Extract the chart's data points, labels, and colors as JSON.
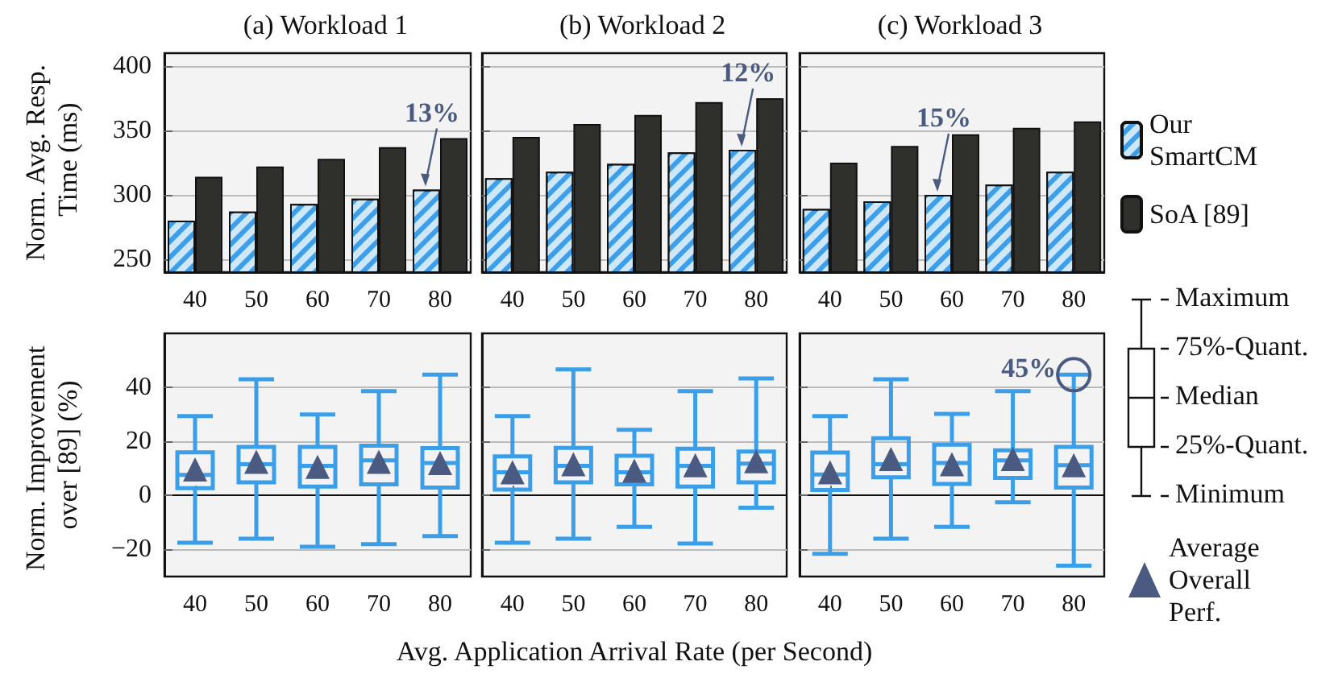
{
  "chart_data": [
    {
      "type": "bar",
      "title": "(a) Workload 1",
      "ylabel": "Norm. Avg. Resp. Time (ms)",
      "categories": [
        "40",
        "50",
        "60",
        "70",
        "80"
      ],
      "series": [
        {
          "color": "#3d9fe9",
          "values": [
            280,
            287,
            293,
            297,
            304
          ]
        },
        {
          "color": "#2f302c",
          "values": [
            314,
            322,
            328,
            337,
            344
          ]
        }
      ],
      "ylim": [
        240,
        410
      ],
      "yticks": [
        250,
        300,
        350,
        400
      ],
      "grid": "y",
      "legend": false,
      "annotations": [
        {
          "text": "13%",
          "x": "80",
          "y": 304
        }
      ]
    },
    {
      "type": "bar",
      "title": "(b) Workload 2",
      "categories": [
        "40",
        "50",
        "60",
        "70",
        "80"
      ],
      "series": [
        {
          "color": "#3d9fe9",
          "values": [
            313,
            318,
            324,
            333,
            335
          ]
        },
        {
          "color": "#2f302c",
          "values": [
            345,
            355,
            362,
            372,
            375
          ]
        }
      ],
      "ylim": [
        240,
        410
      ],
      "yticks": [
        250,
        300,
        350,
        400
      ],
      "grid": "y",
      "legend": false,
      "tick_labels": "x",
      "annotations": [
        {
          "text": "12%",
          "x": "80",
          "y": 335
        }
      ]
    },
    {
      "type": "bar",
      "title": "(c) Workload 3",
      "categories": [
        "40",
        "50",
        "60",
        "70",
        "80"
      ],
      "series": [
        {
          "name": "Our SmartCM",
          "color": "#3d9fe9",
          "values": [
            289,
            295,
            300,
            308,
            318
          ]
        },
        {
          "name": "SoA [89]",
          "color": "#2f302c",
          "values": [
            325,
            338,
            347,
            352,
            357
          ]
        }
      ],
      "ylim": [
        240,
        410
      ],
      "yticks": [
        250,
        300,
        350,
        400
      ],
      "grid": "y",
      "legend": "right",
      "tick_labels": "x",
      "annotations": [
        {
          "text": "15%",
          "x": "60",
          "y": 300
        }
      ]
    },
    {
      "type": "box",
      "ylabel": "Norm. Improvement over [89] (%)",
      "categories": [
        "40",
        "50",
        "60",
        "70",
        "80"
      ],
      "series": [
        {
          "type": "box",
          "color": "#3a9ee8",
          "boxes": [
            {
              "low": -17.5,
              "q1": 2.7,
              "median": 7.6,
              "q3": 16,
              "high": 29.4
            },
            {
              "low": -16,
              "q1": 4.9,
              "median": 11.6,
              "q3": 18,
              "high": 43
            },
            {
              "low": -19,
              "q1": 3.3,
              "median": 11,
              "q3": 18,
              "high": 30
            },
            {
              "low": -18,
              "q1": 4.1,
              "median": 13,
              "q3": 18.4,
              "high": 38.6
            },
            {
              "low": -15,
              "q1": 2.9,
              "median": 12,
              "q3": 17.5,
              "high": 44.7
            }
          ]
        },
        {
          "type": "scatter",
          "color": "#4a5a80",
          "x": [
            "40",
            "50",
            "60",
            "70",
            "80"
          ],
          "values": [
            9.6,
            12.5,
            10.6,
            12.5,
            12
          ]
        }
      ],
      "ylim": [
        -30,
        60
      ],
      "yticks": [
        -20,
        0,
        20,
        40
      ],
      "grid": "y",
      "legend": false,
      "marker": "triangle"
    },
    {
      "type": "box",
      "xlabel": "Avg. Application Arrival Rate (per Second)",
      "categories": [
        "40",
        "50",
        "60",
        "70",
        "80"
      ],
      "series": [
        {
          "type": "box",
          "color": "#3a9ee8",
          "boxes": [
            {
              "low": -17.5,
              "q1": 2.2,
              "median": 8.6,
              "q3": 14.5,
              "high": 29.4
            },
            {
              "low": -16,
              "q1": 4.9,
              "median": 11,
              "q3": 17.6,
              "high": 46.7
            },
            {
              "low": -11.6,
              "q1": 4.1,
              "median": 8.6,
              "q3": 14.7,
              "high": 24.3
            },
            {
              "low": -17.8,
              "q1": 3.3,
              "median": 11,
              "q3": 17.3,
              "high": 38.6
            },
            {
              "low": -4.5,
              "q1": 4.9,
              "median": 11.8,
              "q3": 16.3,
              "high": 43.3
            }
          ]
        },
        {
          "type": "scatter",
          "color": "#4a5a80",
          "x": [
            "40",
            "50",
            "60",
            "70",
            "80"
          ],
          "values": [
            8.6,
            11.6,
            9.2,
            11.2,
            12.7
          ]
        }
      ],
      "ylim": [
        -30,
        60
      ],
      "yticks": [
        -20,
        0,
        20,
        40
      ],
      "grid": "y",
      "legend": false,
      "marker": "triangle",
      "tick_labels": "x"
    },
    {
      "type": "box",
      "categories": [
        "40",
        "50",
        "60",
        "70",
        "80"
      ],
      "series": [
        {
          "type": "box",
          "color": "#3a9ee8",
          "boxes": [
            {
              "low": -21.6,
              "q1": 2,
              "median": 7.8,
              "q3": 15.9,
              "high": 29.4
            },
            {
              "low": -16,
              "q1": 6.7,
              "median": 11.6,
              "q3": 21.2,
              "high": 43
            },
            {
              "low": -11.6,
              "q1": 4.3,
              "median": 12,
              "q3": 18.8,
              "high": 30.2
            },
            {
              "low": -2.5,
              "q1": 6.5,
              "median": 13,
              "q3": 16.7,
              "high": 38.6
            },
            {
              "low": -26,
              "q1": 2.9,
              "median": 11.2,
              "q3": 18,
              "high": 44.7
            }
          ]
        },
        {
          "type": "scatter",
          "name": "Average Overall Perf.",
          "color": "#4a5a80",
          "x": [
            "40",
            "50",
            "60",
            "70",
            "80"
          ],
          "values": [
            8.6,
            13.5,
            11.6,
            13.5,
            11.2
          ]
        }
      ],
      "ylim": [
        -30,
        60
      ],
      "yticks": [
        -20,
        0,
        20,
        40
      ],
      "grid": "y",
      "legend": "right",
      "marker": "triangle",
      "tick_labels": "x",
      "annotations": [
        "Maximum",
        "75%-Quant.",
        "Median",
        "25%-Quant.",
        "Minimum",
        {
          "text": "45%",
          "x": "80",
          "y": 44.7
        }
      ]
    }
  ]
}
